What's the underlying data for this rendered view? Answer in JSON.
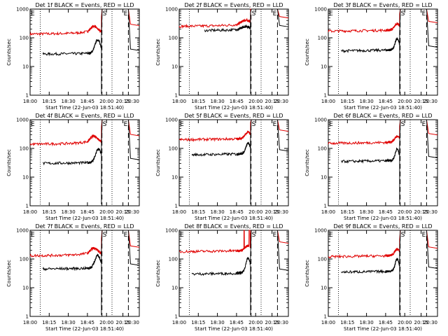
{
  "chart_data": [
    {
      "type": "line",
      "title": "Det 1f BLACK = Events, RED = LLD",
      "xlabel": "Start Time (22-Jun-03 18:51:40)",
      "ylabel": "Counts/sec",
      "yscale": "log",
      "ylim": [
        1,
        1000
      ],
      "yticks": [
        "1",
        "10",
        "100",
        "1000"
      ],
      "xlim": [
        "18:00",
        "20:30"
      ],
      "xticks": [
        "18:00",
        "18:15",
        "18:30",
        "18:45",
        "20:00",
        "20:15",
        "20:30"
      ],
      "markers": [
        {
          "label": "E",
          "x": "18:00"
        },
        {
          "label": "S",
          "x": "19:42"
        },
        {
          "label": "E",
          "x": "20:15"
        }
      ],
      "red": {
        "base": 135,
        "hump": {
          "x": "19:10",
          "amp": 0.22,
          "width": 0.14
        }
      },
      "black": {
        "base": 27,
        "hump": {
          "x": "19:25",
          "amp": 0.45,
          "width": 0.1
        },
        "start": "18:10"
      }
    },
    {
      "type": "line",
      "title": "Det 2f BLACK = Events, RED = LLD",
      "xlabel": "Start Time (22-Jun-03 18:51:40)",
      "ylabel": "Counts/sec",
      "yscale": "log",
      "ylim": [
        1,
        1000
      ],
      "yticks": [
        "1",
        "10",
        "100",
        "1000"
      ],
      "xlim": [
        "18:00",
        "20:30"
      ],
      "xticks": [
        "18:00",
        "18:15",
        "18:30",
        "18:45",
        "20:00",
        "20:15",
        "20:30"
      ],
      "markers": [
        {
          "label": "S",
          "x": "19:42"
        },
        {
          "label": "E",
          "x": "20:15"
        }
      ],
      "red": {
        "base": 250,
        "hump": {
          "x": "19:20",
          "amp": 0.16,
          "width": 0.18
        }
      },
      "black": {
        "base": 180,
        "hump": {
          "x": "19:20",
          "amp": 0.1,
          "width": 0.15
        },
        "start": "18:20"
      }
    },
    {
      "type": "line",
      "title": "Det 3f BLACK = Events, RED = LLD",
      "xlabel": "Start Time (22-Jun-03 18:51:40)",
      "ylabel": "Counts/sec",
      "yscale": "log",
      "ylim": [
        1,
        1000
      ],
      "yticks": [
        "1",
        "10",
        "100",
        "1000"
      ],
      "xlim": [
        "18:00",
        "20:30"
      ],
      "xticks": [
        "18:00",
        "18:15",
        "18:30",
        "18:45",
        "20:00",
        "20:15",
        "20:30"
      ],
      "markers": [
        {
          "label": "E",
          "x": "18:00"
        },
        {
          "label": "S",
          "x": "19:42"
        },
        {
          "label": "E",
          "x": "20:15"
        }
      ],
      "red": {
        "base": 170,
        "hump": {
          "x": "19:30",
          "amp": 0.2,
          "width": 0.09
        }
      },
      "black": {
        "base": 35,
        "hump": {
          "x": "19:30",
          "amp": 0.38,
          "width": 0.07
        },
        "start": "18:10"
      }
    },
    {
      "type": "line",
      "title": "Det 4f BLACK = Events, RED = LLD",
      "xlabel": "Start Time (22-Jun-03 18:51:40)",
      "ylabel": "Counts/sec",
      "yscale": "log",
      "ylim": [
        1,
        1000
      ],
      "yticks": [
        "1",
        "10",
        "100",
        "1000"
      ],
      "xlim": [
        "18:00",
        "20:30"
      ],
      "xticks": [
        "18:00",
        "18:15",
        "18:30",
        "18:45",
        "20:00",
        "20:15",
        "20:30"
      ],
      "markers": [
        {
          "label": "E",
          "x": "18:00"
        },
        {
          "label": "S",
          "x": "19:42"
        },
        {
          "label": "E",
          "x": "20:15"
        }
      ],
      "red": {
        "base": 140,
        "hump": {
          "x": "19:10",
          "amp": 0.24,
          "width": 0.14
        }
      },
      "black": {
        "base": 30,
        "hump": {
          "x": "19:28",
          "amp": 0.45,
          "width": 0.1
        },
        "start": "18:10"
      }
    },
    {
      "type": "line",
      "title": "Det 5f BLACK = Events, RED = LLD",
      "xlabel": "Start Time (22-Jun-03 18:51:40)",
      "ylabel": "Counts/sec",
      "yscale": "log",
      "ylim": [
        1,
        1000
      ],
      "yticks": [
        "1",
        "10",
        "100",
        "1000"
      ],
      "xlim": [
        "18:00",
        "20:30"
      ],
      "xticks": [
        "18:00",
        "18:15",
        "18:30",
        "18:45",
        "20:00",
        "20:15",
        "20:30"
      ],
      "markers": [
        {
          "label": "E",
          "x": "18:00"
        },
        {
          "label": "S",
          "x": "19:42"
        },
        {
          "label": "E",
          "x": "20:15"
        }
      ],
      "red": {
        "base": 200,
        "hump": {
          "x": "19:30",
          "amp": 0.2,
          "width": 0.1
        }
      },
      "black": {
        "base": 60,
        "hump": {
          "x": "19:30",
          "amp": 0.35,
          "width": 0.08
        },
        "start": "18:10"
      }
    },
    {
      "type": "line",
      "title": "Det 6f BLACK = Events, RED = LLD",
      "xlabel": "Start Time (22-Jun-03 18:51:40)",
      "ylabel": "Counts/sec",
      "yscale": "log",
      "ylim": [
        1,
        1000
      ],
      "yticks": [
        "1",
        "10",
        "100",
        "1000"
      ],
      "xlim": [
        "18:00",
        "20:30"
      ],
      "xticks": [
        "18:00",
        "18:15",
        "18:30",
        "18:45",
        "20:00",
        "20:15",
        "20:30"
      ],
      "markers": [
        {
          "label": "E",
          "x": "18:00"
        },
        {
          "label": "S",
          "x": "19:42"
        },
        {
          "label": "E",
          "x": "20:15"
        }
      ],
      "red": {
        "base": 150,
        "hump": {
          "x": "19:30",
          "amp": 0.18,
          "width": 0.09
        }
      },
      "black": {
        "base": 35,
        "hump": {
          "x": "19:30",
          "amp": 0.38,
          "width": 0.07
        },
        "start": "18:10"
      }
    },
    {
      "type": "line",
      "title": "Det 7f BLACK = Events, RED = LLD",
      "xlabel": "Start Time (22-Jun-03 18:51:40)",
      "ylabel": "Counts/sec",
      "yscale": "log",
      "ylim": [
        1,
        1000
      ],
      "yticks": [
        "1",
        "10",
        "100",
        "1000"
      ],
      "xlim": [
        "18:00",
        "20:30"
      ],
      "xticks": [
        "18:00",
        "18:15",
        "18:30",
        "18:45",
        "20:00",
        "20:15",
        "20:30"
      ],
      "markers": [
        {
          "label": "E",
          "x": "18:00"
        },
        {
          "label": "S",
          "x": "19:42"
        },
        {
          "label": "E",
          "x": "20:15"
        }
      ],
      "red": {
        "base": 130,
        "hump": {
          "x": "19:10",
          "amp": 0.22,
          "width": 0.14
        }
      },
      "black": {
        "base": 45,
        "hump": {
          "x": "19:25",
          "amp": 0.42,
          "width": 0.1
        },
        "start": "18:10"
      }
    },
    {
      "type": "line",
      "title": "Det 8f BLACK = Events, RED = LLD",
      "xlabel": "Start Time (22-Jun-03 18:51:40)",
      "ylabel": "Counts/sec",
      "yscale": "log",
      "ylim": [
        1,
        1000
      ],
      "yticks": [
        "1",
        "10",
        "100",
        "1000"
      ],
      "xlim": [
        "18:00",
        "20:30"
      ],
      "xticks": [
        "18:00",
        "18:15",
        "18:30",
        "18:45",
        "20:00",
        "20:15",
        "20:30"
      ],
      "markers": [
        {
          "label": "E",
          "x": "18:00"
        },
        {
          "label": "S",
          "x": "19:42"
        },
        {
          "label": "E",
          "x": "20:15"
        }
      ],
      "red": {
        "base": 180,
        "hump": {
          "x": "19:30",
          "amp": 0.15,
          "width": 0.1
        },
        "spikes": [
          {
            "from": "19:34",
            "to": "19:38"
          },
          {
            "from": "19:14",
            "to": "19:16"
          }
        ]
      },
      "black": {
        "base": 30,
        "hump": {
          "x": "19:30",
          "amp": 0.5,
          "width": 0.08
        },
        "start": "18:10"
      }
    },
    {
      "type": "line",
      "title": "Det 9f BLACK = Events, RED = LLD",
      "xlabel": "Start Time (22-Jun-03 18:51:40)",
      "ylabel": "Counts/sec",
      "yscale": "log",
      "ylim": [
        1,
        1000
      ],
      "yticks": [
        "1",
        "10",
        "100",
        "1000"
      ],
      "xlim": [
        "18:00",
        "20:30"
      ],
      "xticks": [
        "18:00",
        "18:15",
        "18:30",
        "18:45",
        "20:00",
        "20:15",
        "20:30"
      ],
      "markers": [
        {
          "label": "E",
          "x": "18:00"
        },
        {
          "label": "S",
          "x": "19:42"
        },
        {
          "label": "E",
          "x": "20:15"
        }
      ],
      "red": {
        "base": 120,
        "hump": {
          "x": "19:30",
          "amp": 0.2,
          "width": 0.09
        }
      },
      "black": {
        "base": 35,
        "hump": {
          "x": "19:30",
          "amp": 0.4,
          "width": 0.07
        },
        "start": "18:10"
      }
    }
  ],
  "colors": {
    "events": "#000000",
    "lld": "#e00000",
    "axes": "#000000"
  }
}
